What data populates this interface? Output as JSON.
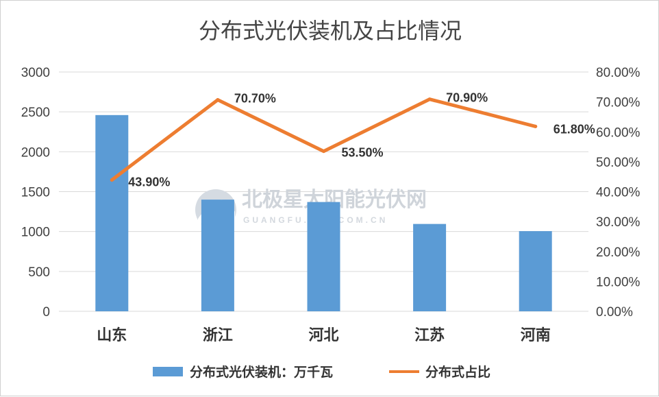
{
  "chart_data": {
    "type": "bar+line",
    "title": "分布式光伏装机及占比情况",
    "categories": [
      "山东",
      "浙江",
      "河北",
      "江苏",
      "河南"
    ],
    "series": [
      {
        "name": "分布式光伏装机：万千瓦",
        "type": "bar",
        "axis": "left",
        "color": "#5b9bd5",
        "values": [
          2460,
          1400,
          1370,
          1095,
          1005
        ]
      },
      {
        "name": "分布式占比",
        "type": "line",
        "axis": "right",
        "color": "#ed7d31",
        "values": [
          43.9,
          70.7,
          53.5,
          70.9,
          61.8
        ],
        "data_labels": [
          "43.90%",
          "70.70%",
          "53.50%",
          "70.90%",
          "61.80%"
        ]
      }
    ],
    "y_left": {
      "ylim": [
        0,
        3000
      ],
      "ticks": [
        "0",
        "500",
        "1000",
        "1500",
        "2000",
        "2500",
        "3000"
      ]
    },
    "y_right": {
      "ylim": [
        0,
        80
      ],
      "ticks": [
        "0.00%",
        "10.00%",
        "20.00%",
        "30.00%",
        "40.00%",
        "50.00%",
        "60.00%",
        "70.00%",
        "80.00%"
      ]
    },
    "grid": true,
    "legend": "bottom"
  },
  "watermark": {
    "text": "北极星太阳能光伏网",
    "subtext": "GUANGFU.BJX.COM.CN",
    "icon": "polaris-logo-icon"
  }
}
